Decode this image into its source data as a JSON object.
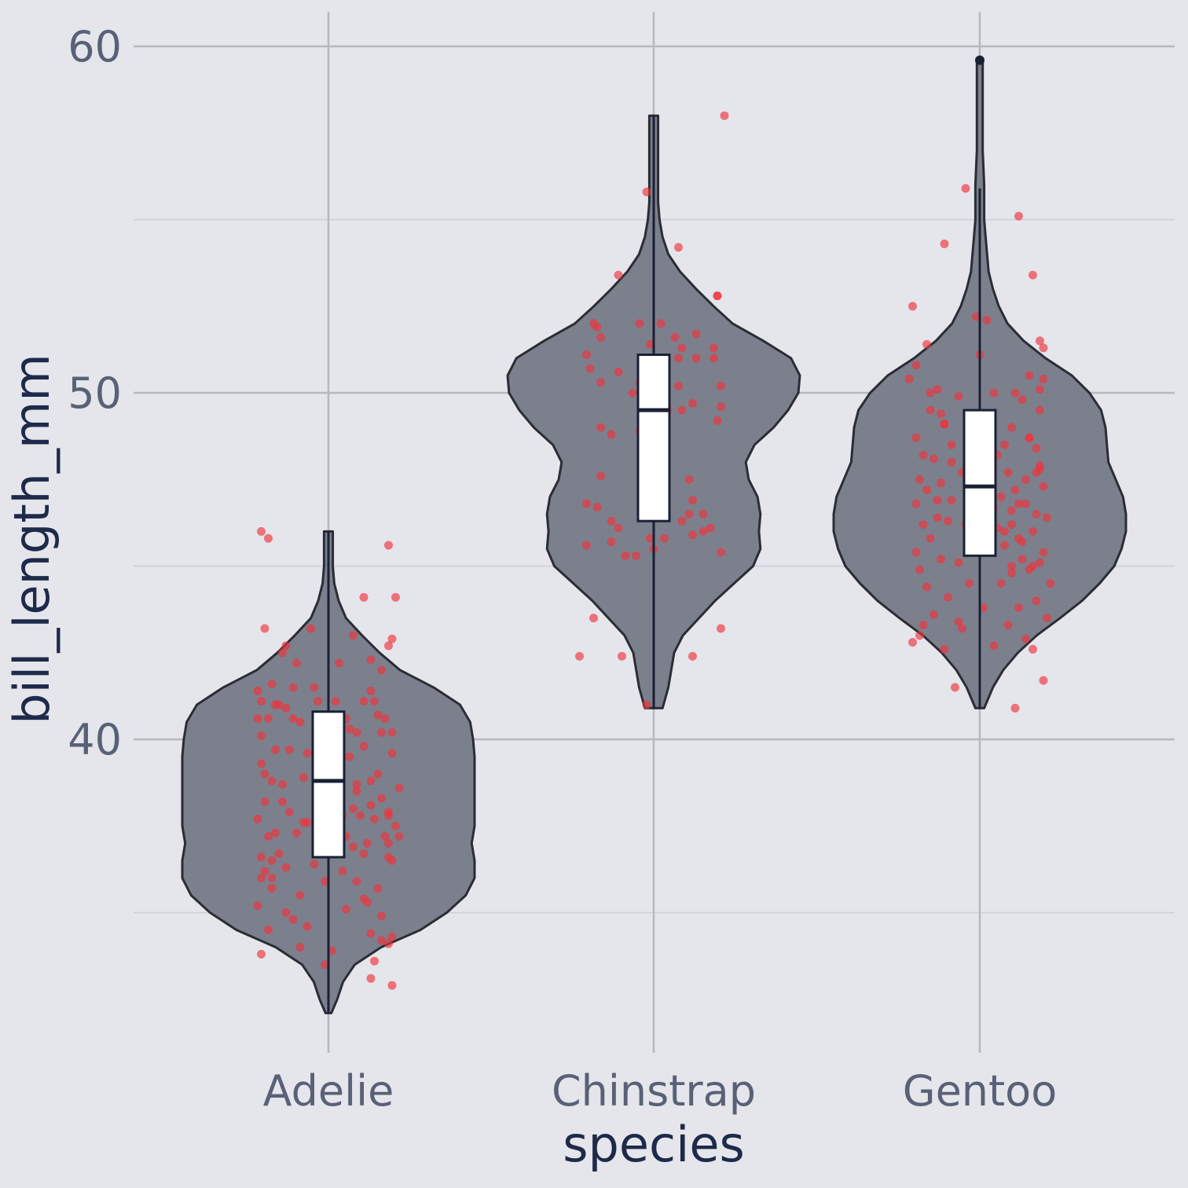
{
  "chart_data": {
    "type": "violin",
    "xlabel": "species",
    "ylabel": "bill_length_mm",
    "ylim": [
      31.8,
      61
    ],
    "y_ticks": [
      40,
      50,
      60
    ],
    "y_tick_labels": [
      "40",
      "50",
      "60"
    ],
    "y_minor_ticks": [
      35,
      45,
      55
    ],
    "grid": true,
    "legend": "none",
    "categories": [
      "Adelie",
      "Chinstrap",
      "Gentoo"
    ],
    "colors": {
      "background": "#e5e6eb",
      "violin_fill": "#7c808c",
      "outline": "#2a2d35",
      "box_fill": "#ffffff",
      "box_line": "#1a2035",
      "points": "#f0323c",
      "grid_major": "#b6b8c1",
      "grid_minor": "#cdcfd6"
    },
    "violins": [
      {
        "category": "Adelie",
        "min": 32.1,
        "max": 46.0,
        "density": [
          [
            32.1,
            0.02
          ],
          [
            32.5,
            0.06
          ],
          [
            33,
            0.1
          ],
          [
            33.5,
            0.18
          ],
          [
            34,
            0.36
          ],
          [
            34.5,
            0.63
          ],
          [
            35,
            0.81
          ],
          [
            35.5,
            0.94
          ],
          [
            36,
            1.0
          ],
          [
            36.5,
            1.0
          ],
          [
            37,
            0.98
          ],
          [
            37.5,
            1.0
          ],
          [
            38,
            1.0
          ],
          [
            38.5,
            1.0
          ],
          [
            39,
            1.0
          ],
          [
            39.5,
            1.0
          ],
          [
            40,
            0.99
          ],
          [
            40.5,
            0.97
          ],
          [
            41,
            0.9
          ],
          [
            41.5,
            0.72
          ],
          [
            42,
            0.49
          ],
          [
            42.5,
            0.35
          ],
          [
            43,
            0.23
          ],
          [
            43.5,
            0.12
          ],
          [
            44,
            0.07
          ],
          [
            44.5,
            0.04
          ],
          [
            45,
            0.03
          ],
          [
            45.5,
            0.03
          ],
          [
            46,
            0.03
          ]
        ],
        "q1": 36.6,
        "median": 38.8,
        "q3": 40.8,
        "whisker_low": 32.1,
        "whisker_high": 46.0,
        "outliers": []
      },
      {
        "category": "Chinstrap",
        "min": 40.9,
        "max": 58.0,
        "density": [
          [
            40.9,
            0.06
          ],
          [
            41.5,
            0.1
          ],
          [
            42,
            0.12
          ],
          [
            42.5,
            0.14
          ],
          [
            43,
            0.2
          ],
          [
            43.5,
            0.31
          ],
          [
            44,
            0.42
          ],
          [
            44.5,
            0.55
          ],
          [
            45,
            0.68
          ],
          [
            45.5,
            0.73
          ],
          [
            46,
            0.72
          ],
          [
            46.5,
            0.73
          ],
          [
            47,
            0.71
          ],
          [
            47.5,
            0.65
          ],
          [
            48,
            0.63
          ],
          [
            48.5,
            0.69
          ],
          [
            49,
            0.82
          ],
          [
            49.5,
            0.92
          ],
          [
            50,
            0.99
          ],
          [
            50.5,
            1.0
          ],
          [
            51,
            0.94
          ],
          [
            51.5,
            0.75
          ],
          [
            52,
            0.54
          ],
          [
            52.5,
            0.41
          ],
          [
            53,
            0.29
          ],
          [
            53.5,
            0.18
          ],
          [
            54,
            0.1
          ],
          [
            54.5,
            0.06
          ],
          [
            55,
            0.04
          ],
          [
            55.5,
            0.03
          ],
          [
            56,
            0.03
          ],
          [
            57,
            0.03
          ],
          [
            58,
            0.03
          ]
        ],
        "q1": 46.3,
        "median": 49.5,
        "q3": 51.1,
        "whisker_low": 40.9,
        "whisker_high": 58.0,
        "outliers": []
      },
      {
        "category": "Gentoo",
        "min": 40.9,
        "max": 59.6,
        "density": [
          [
            40.9,
            0.03
          ],
          [
            41.5,
            0.09
          ],
          [
            42,
            0.16
          ],
          [
            42.5,
            0.26
          ],
          [
            43,
            0.39
          ],
          [
            43.5,
            0.55
          ],
          [
            44,
            0.7
          ],
          [
            44.5,
            0.82
          ],
          [
            45,
            0.92
          ],
          [
            45.5,
            0.97
          ],
          [
            46,
            1.0
          ],
          [
            46.5,
            1.0
          ],
          [
            47,
            0.98
          ],
          [
            47.5,
            0.93
          ],
          [
            48,
            0.88
          ],
          [
            48.5,
            0.87
          ],
          [
            49,
            0.86
          ],
          [
            49.5,
            0.83
          ],
          [
            50,
            0.75
          ],
          [
            50.5,
            0.63
          ],
          [
            51,
            0.45
          ],
          [
            51.5,
            0.3
          ],
          [
            52,
            0.19
          ],
          [
            52.5,
            0.13
          ],
          [
            53,
            0.09
          ],
          [
            53.5,
            0.06
          ],
          [
            54,
            0.05
          ],
          [
            54.5,
            0.04
          ],
          [
            55,
            0.03
          ],
          [
            56,
            0.03
          ],
          [
            57,
            0.02
          ],
          [
            58,
            0.02
          ],
          [
            59,
            0.02
          ],
          [
            59.6,
            0.02
          ]
        ],
        "q1": 45.3,
        "median": 47.3,
        "q3": 49.5,
        "whisker_low": 40.9,
        "whisker_high": 55.9,
        "outliers": [
          59.6
        ]
      }
    ],
    "points": [
      {
        "category": "Adelie",
        "offset": [
          -0.19,
          -0.17,
          0.17,
          0.19,
          0.1,
          -0.18,
          -0.05,
          0.17,
          -0.12,
          -0.13,
          0.07,
          0.12,
          0.03,
          -0.09,
          0.15,
          -0.2,
          -0.16,
          -0.04,
          -0.1,
          0.12,
          -0.19,
          -0.03,
          0.02,
          0.1,
          0.13,
          -0.14,
          -0.2,
          0.05,
          0.16,
          -0.17,
          -0.1,
          -0.08,
          0.08,
          0.15,
          0.18,
          -0.02,
          0.06,
          -0.15,
          -0.06,
          0.1,
          0.18,
          -0.11,
          0.04,
          0.14,
          -0.18,
          -0.07,
          0.12,
          -0.16,
          0.2,
          -0.03,
          0.08,
          -0.13,
          0.15,
          0.02,
          -0.18,
          0.07,
          0.17,
          -0.11,
          0.04,
          -0.2,
          0.13,
          -0.06,
          0.09,
          -0.15,
          0.19,
          -0.09,
          0.05,
          -0.17,
          0.11,
          -0.03,
          0.16,
          -0.14,
          0.07,
          -0.19,
          0.1,
          0.17,
          -0.16,
          -0.04,
          0.18,
          -0.12,
          -0.19,
          0.08,
          -0.01,
          0.14,
          -0.16,
          -0.08,
          0.11,
          -0.2,
          0.05,
          -0.12,
          0.15,
          -0.06,
          -0.17,
          0.12,
          0.17,
          -0.08,
          0.01,
          0.13,
          0.12,
          0.18,
          -0.15,
          -0.19,
          0.06,
          -0.13,
          0.12,
          -0.07,
          0.17,
          -0.18,
          0.1,
          -0.1,
          0.15,
          -0.01,
          0.18,
          0.2,
          -0.16,
          -0.19,
          0.14,
          0.17,
          0.08,
          -0.12,
          0.04,
          0.18
        ],
        "values": [
          46.0,
          45.8,
          45.6,
          44.1,
          44.1,
          43.2,
          43.2,
          42.7,
          42.7,
          42.5,
          43.0,
          42.3,
          42.2,
          42.2,
          42.0,
          41.4,
          41.6,
          41.5,
          41.5,
          41.4,
          41.1,
          41.1,
          41.1,
          41.1,
          41.1,
          41.0,
          40.6,
          40.6,
          40.6,
          40.6,
          40.6,
          40.5,
          40.2,
          40.2,
          40.2,
          40.1,
          40.3,
          39.7,
          39.6,
          39.8,
          39.6,
          39.7,
          39.5,
          39.0,
          39.0,
          38.9,
          38.8,
          38.8,
          38.6,
          38.7,
          38.7,
          38.2,
          38.3,
          38.1,
          38.2,
          38.0,
          37.9,
          37.9,
          37.8,
          37.7,
          37.7,
          37.6,
          37.8,
          37.3,
          37.5,
          37.3,
          37.2,
          37.2,
          37.0,
          37.0,
          37.2,
          36.7,
          36.9,
          36.6,
          36.7,
          36.6,
          36.5,
          36.4,
          36.5,
          36.3,
          36.0,
          35.9,
          35.9,
          35.7,
          35.7,
          35.5,
          35.3,
          35.2,
          35.1,
          35.0,
          34.9,
          34.6,
          34.5,
          34.4,
          34.1,
          34.0,
          33.9,
          33.6,
          33.1,
          32.9,
          41.0,
          40.1,
          39.5,
          38.7,
          38.1,
          37.6,
          37.0,
          36.2,
          35.4,
          34.8,
          34.2,
          33.5,
          42.9,
          37.2,
          36.0,
          39.3,
          40.7,
          37.8,
          38.5,
          40.9,
          36.2,
          34.3,
          33.8
        ]
      },
      {
        "category": "Chinstrap",
        "offset": [
          0.2,
          -0.02,
          0.07,
          -0.1,
          0.18,
          0.17,
          -0.19,
          -0.16,
          -0.17,
          -0.15,
          0.02,
          0.08,
          -0.01,
          0.17,
          0.12,
          -0.1,
          -0.04,
          0.03,
          -0.02,
          -0.18,
          0.07,
          0.19,
          0.11,
          -0.15,
          -0.12,
          -0.04,
          0.18,
          0.08,
          -0.15,
          -0.16,
          0.14,
          0.08,
          -0.12,
          0.1,
          0.03,
          0.14,
          -0.19,
          -0.12,
          -0.01,
          0.11,
          0.19,
          -0.08,
          0.0,
          -0.17,
          0.19,
          0.11,
          -0.09,
          -0.02,
          -0.21,
          0.11,
          0.19,
          0.18,
          0.06,
          0.07,
          0.04,
          0.1,
          0.16,
          -0.1,
          -0.15,
          -0.19,
          -0.05,
          0.12,
          -0.06,
          0.02,
          -0.04
        ],
        "values": [
          58.0,
          55.8,
          54.2,
          53.4,
          52.8,
          51.3,
          51.1,
          51.9,
          52.0,
          51.6,
          52.0,
          51.3,
          51.4,
          51.0,
          51.0,
          50.6,
          50.3,
          50.5,
          49.7,
          50.7,
          50.2,
          50.2,
          49.7,
          49.0,
          48.8,
          48.9,
          49.2,
          49.5,
          47.6,
          46.7,
          46.5,
          46.3,
          46.3,
          46.5,
          45.8,
          46.0,
          45.6,
          45.7,
          45.8,
          45.9,
          45.4,
          45.3,
          45.5,
          43.5,
          43.2,
          42.4,
          42.4,
          41.0,
          42.4,
          46.9,
          49.6,
          52.8,
          51.6,
          51.0,
          49.5,
          47.5,
          46.1,
          46.1,
          50.3,
          46.8,
          45.3,
          51.7,
          50.0,
          49.2,
          52.0
        ]
      },
      {
        "category": "Gentoo",
        "offset": [
          0.0,
          -0.04,
          0.11,
          -0.1,
          0.15,
          -0.19,
          -0.01,
          0.02,
          0.17,
          0.18,
          0.0,
          -0.2,
          0.14,
          0.04,
          0.17,
          0.1,
          -0.12,
          -0.06,
          0.12,
          -0.14,
          0.17,
          -0.02,
          0.09,
          -0.1,
          0.14,
          -0.18,
          0.07,
          -0.08,
          0.02,
          0.16,
          -0.16,
          -0.13,
          0.05,
          0.17,
          -0.05,
          0.08,
          -0.17,
          0.13,
          -0.11,
          -0.02,
          0.1,
          0.18,
          -0.15,
          0.06,
          -0.08,
          0.13,
          -0.18,
          0.02,
          0.16,
          -0.12,
          0.09,
          -0.04,
          0.19,
          -0.16,
          0.05,
          -0.09,
          0.15,
          0.11,
          -0.14,
          0.07,
          -0.02,
          0.18,
          -0.18,
          0.03,
          0.12,
          -0.11,
          0.17,
          -0.06,
          0.09,
          -0.17,
          0.14,
          -0.03,
          0.2,
          -0.15,
          0.06,
          -0.09,
          0.16,
          0.11,
          -0.13,
          0.01,
          0.19,
          -0.16,
          0.08,
          -0.05,
          0.13,
          -0.19,
          0.04,
          0.15,
          -0.1,
          0.18,
          -0.07,
          0.1,
          -0.14,
          0.02,
          0.17,
          -0.12,
          0.07,
          -0.03,
          0.14,
          -0.18,
          0.09,
          -0.06,
          0.16,
          -0.11,
          0.04,
          0.12,
          -0.17,
          -0.15,
          0.18,
          0.0,
          -0.1,
          0.09,
          0.15,
          -0.08,
          0.11
        ],
        "values": [
          59.6,
          55.9,
          55.1,
          54.3,
          53.4,
          52.5,
          52.2,
          52.1,
          51.5,
          51.3,
          51.1,
          50.4,
          50.5,
          50.0,
          50.1,
          50.0,
          50.1,
          49.9,
          49.8,
          49.5,
          49.5,
          49.1,
          49.0,
          49.1,
          48.7,
          48.7,
          48.5,
          48.5,
          48.5,
          48.4,
          48.2,
          48.1,
          48.2,
          47.8,
          47.7,
          47.7,
          47.5,
          47.5,
          47.4,
          47.3,
          47.2,
          47.3,
          47.2,
          47.0,
          46.9,
          46.8,
          46.8,
          46.6,
          46.5,
          46.4,
          46.6,
          46.2,
          46.4,
          46.2,
          46.1,
          46.3,
          46.0,
          45.8,
          45.8,
          45.6,
          45.5,
          45.4,
          45.4,
          45.5,
          45.2,
          45.2,
          45.1,
          45.1,
          45.0,
          44.9,
          44.9,
          44.5,
          44.5,
          44.4,
          44.5,
          44.1,
          44.0,
          43.8,
          43.6,
          43.8,
          43.5,
          43.3,
          43.3,
          43.2,
          42.9,
          42.8,
          42.7,
          42.6,
          42.6,
          41.7,
          41.5,
          40.9,
          50.0,
          48.9,
          47.9,
          46.9,
          46.0,
          45.4,
          48.7,
          50.8,
          44.8,
          43.4,
          47.7,
          49.4,
          46.7,
          45.7,
          43.0,
          51.4,
          50.4,
          47.1,
          49.1,
          46.2,
          45.0,
          48.0,
          46.8
        ]
      }
    ]
  }
}
